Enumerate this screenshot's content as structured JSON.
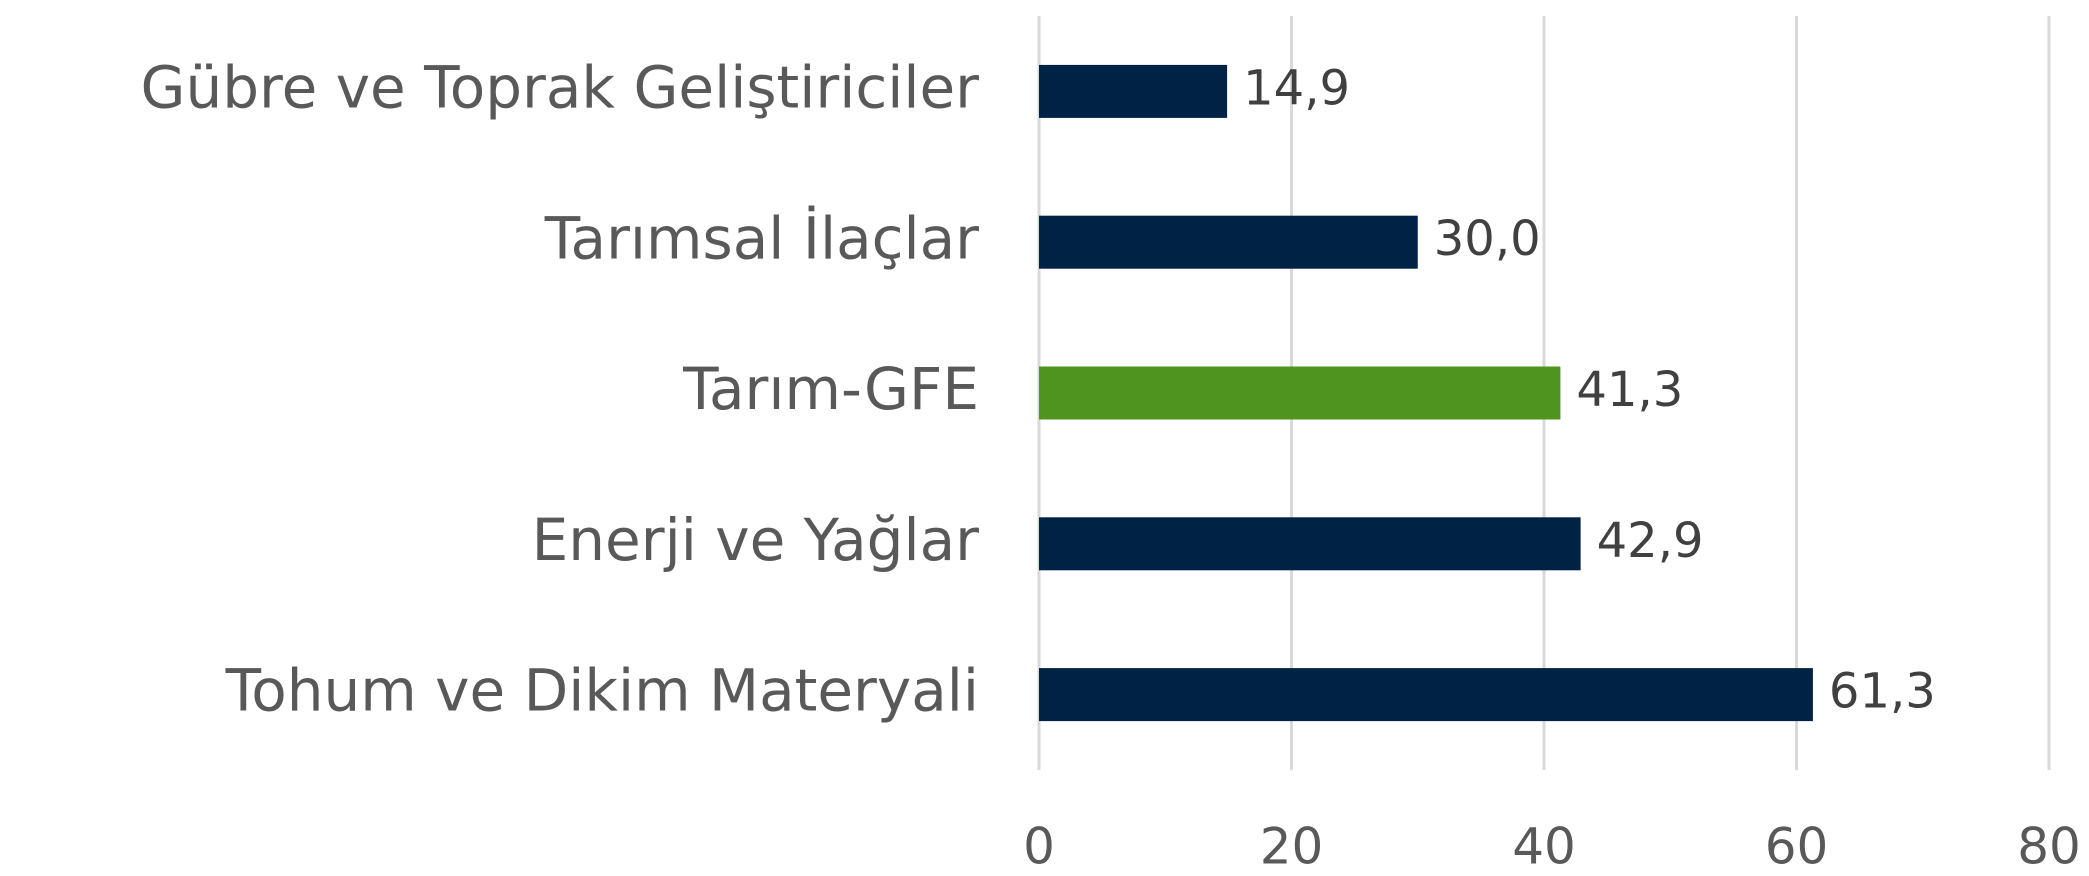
{
  "chart_data": {
    "type": "barh",
    "categories": [
      "Gübre ve Toprak Geliştiriciler",
      "Tarımsal İlaçlar",
      "Tarım-GFE",
      "Enerji ve Yağlar",
      "Tohum ve Dikim Materyali"
    ],
    "values": [
      14.9,
      30.0,
      41.3,
      42.9,
      61.3
    ],
    "value_labels": [
      "14,9",
      "30,0",
      "41,3",
      "42,9",
      "61,3"
    ],
    "colors": [
      "#002244",
      "#002244",
      "#4f941f",
      "#002244",
      "#002244"
    ],
    "xlim": [
      0,
      80
    ],
    "xticks": [
      0,
      20,
      40,
      60,
      80
    ],
    "grid": true
  }
}
